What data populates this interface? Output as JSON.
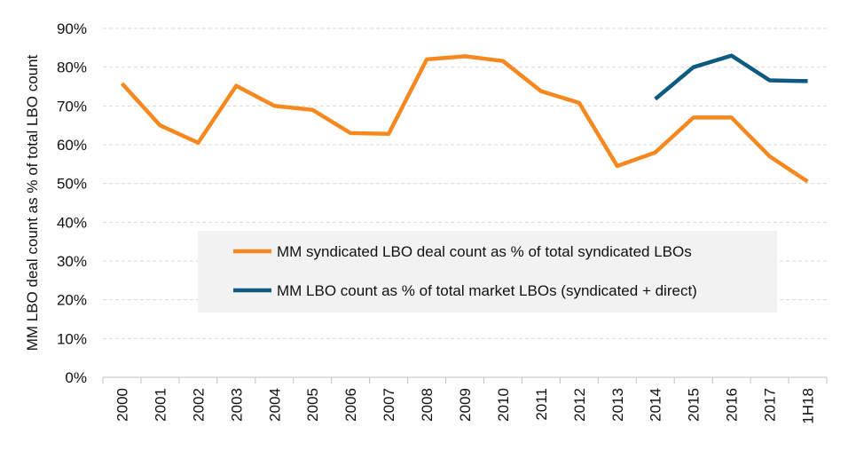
{
  "chart_data": {
    "type": "line",
    "title": "",
    "xlabel": "",
    "ylabel": "MM LBO deal count as % of total LBO count",
    "categories": [
      "2000",
      "2001",
      "2002",
      "2003",
      "2004",
      "2005",
      "2006",
      "2007",
      "2008",
      "2009",
      "2010",
      "2011",
      "2012",
      "2013",
      "2014",
      "2015",
      "2016",
      "2017",
      "1H18"
    ],
    "ylim": [
      0,
      90
    ],
    "yticks": [
      0,
      10,
      20,
      30,
      40,
      50,
      60,
      70,
      80,
      90
    ],
    "ytick_labels": [
      "0%",
      "10%",
      "20%",
      "30%",
      "40%",
      "50%",
      "60%",
      "70%",
      "80%",
      "90%"
    ],
    "grid": "horizontal dashed",
    "legend_position": "center",
    "series": [
      {
        "name": "MM syndicated LBO deal count as % of total syndicated LBOs",
        "color": "#f5891f",
        "values": [
          75.8,
          65.0,
          60.5,
          75.2,
          70.0,
          69.0,
          63.0,
          62.8,
          82.0,
          82.8,
          81.6,
          73.8,
          70.8,
          54.5,
          58.0,
          67.0,
          67.0,
          57.0,
          50.5
        ]
      },
      {
        "name": "MM LBO count as % of total market LBOs (syndicated + direct)",
        "color": "#0e5a80",
        "values": [
          null,
          null,
          null,
          null,
          null,
          null,
          null,
          null,
          null,
          null,
          null,
          null,
          null,
          null,
          71.8,
          80.0,
          83.0,
          76.6,
          76.4
        ]
      }
    ]
  }
}
